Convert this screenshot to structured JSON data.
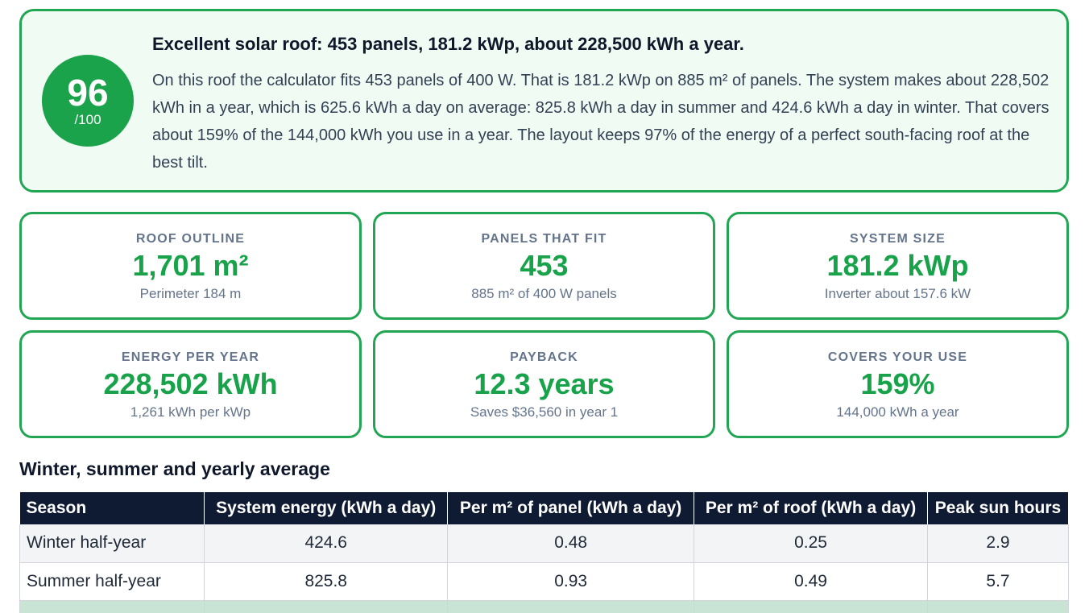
{
  "summary": {
    "score": "96",
    "score_max": "/100",
    "title": "Excellent solar roof: 453 panels, 181.2 kWp, about 228,500 kWh a year.",
    "text": "On this roof the calculator fits 453 panels of 400 W. That is 181.2 kWp on 885 m² of panels. The system makes about 228,502 kWh in a year, which is 625.6 kWh a day on average: 825.8 kWh a day in summer and 424.6 kWh a day in winter. That covers about 159% of the 144,000 kWh you use in a year. The layout keeps 97% of the energy of a perfect south-facing roof at the best tilt."
  },
  "cards": [
    {
      "label": "ROOF OUTLINE",
      "value": "1,701 m²",
      "sub": "Perimeter 184 m"
    },
    {
      "label": "PANELS THAT FIT",
      "value": "453",
      "sub": "885 m² of 400 W panels"
    },
    {
      "label": "SYSTEM SIZE",
      "value": "181.2 kWp",
      "sub": "Inverter about 157.6 kW"
    },
    {
      "label": "ENERGY PER YEAR",
      "value": "228,502 kWh",
      "sub": "1,261 kWh per kWp"
    },
    {
      "label": "PAYBACK",
      "value": "12.3 years",
      "sub": "Saves $36,560 in year 1"
    },
    {
      "label": "COVERS YOUR USE",
      "value": "159%",
      "sub": "144,000 kWh a year"
    }
  ],
  "table": {
    "title": "Winter, summer and yearly average",
    "headers": [
      "Season",
      "System energy (kWh a day)",
      "Per m² of panel (kWh a day)",
      "Per m² of roof (kWh a day)",
      "Peak sun hours"
    ],
    "rows": [
      [
        "Winter half-year",
        "424.6",
        "0.48",
        "0.25",
        "2.9"
      ],
      [
        "Summer half-year",
        "825.8",
        "0.93",
        "0.49",
        "5.7"
      ],
      [
        "",
        "",
        "",
        "",
        ""
      ]
    ]
  },
  "colors": {
    "accent_green": "#1aa34a",
    "header_navy": "#0f1a33",
    "summary_bg": "#effbf3"
  }
}
